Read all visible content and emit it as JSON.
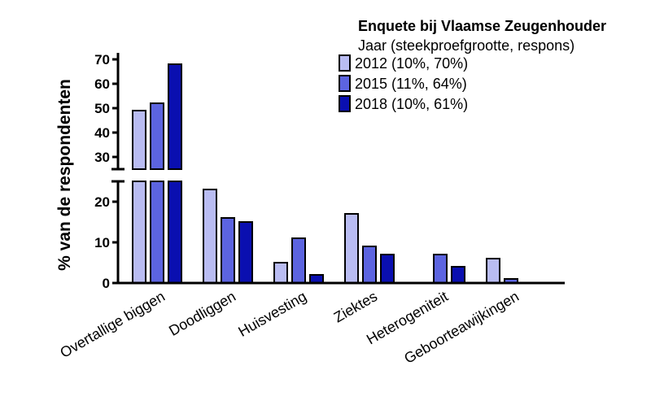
{
  "chart_data": {
    "type": "bar",
    "title": "",
    "ylabel": "% van de respondenten",
    "xlabel": "",
    "categories": [
      "Overtallige biggen",
      "Doodliggen",
      "Huisvesting",
      "Ziektes",
      "Heterogeniteit",
      "Geboorteawijkingen"
    ],
    "series": [
      {
        "name": "2012 (10%, 70%)",
        "color": "#b9bcf2",
        "values": [
          49,
          23,
          5,
          17,
          0,
          6
        ]
      },
      {
        "name": "2015 (11%, 64%)",
        "color": "#5c64e0",
        "values": [
          52,
          16,
          11,
          9,
          7,
          1
        ]
      },
      {
        "name": "2018 (10%, 61%)",
        "color": "#0a0fb0",
        "values": [
          68,
          15,
          2,
          7,
          4,
          0
        ]
      }
    ],
    "y_axis_segments": [
      {
        "range": [
          0,
          25
        ],
        "ticks": [
          0,
          10,
          20
        ]
      },
      {
        "range": [
          25,
          72
        ],
        "ticks": [
          30,
          40,
          50,
          60,
          70
        ]
      }
    ],
    "legend": {
      "title": "Enquete bij Vlaamse Zeugenhouder",
      "subtitle": "Jaar (steekproefgrootte, respons)",
      "placement": "top-right"
    },
    "grid": false
  }
}
